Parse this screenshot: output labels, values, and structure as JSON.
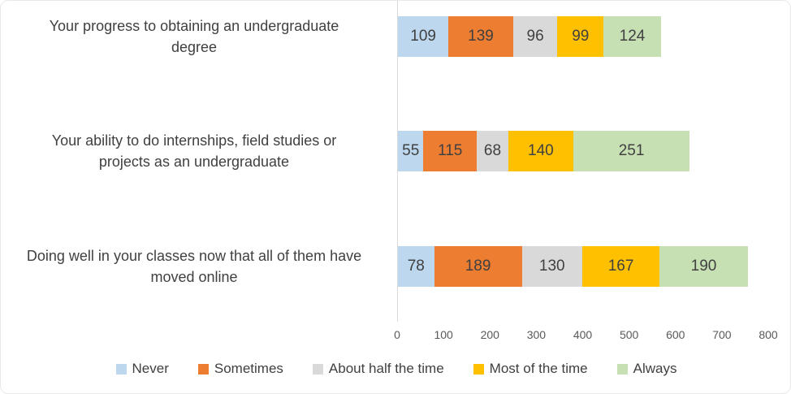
{
  "chart_data": {
    "type": "bar",
    "orientation": "horizontal",
    "stacked": true,
    "title": "",
    "categories": [
      "Your progress to obtaining an undergraduate degree",
      "Your ability to do internships, field studies or projects as an undergraduate",
      "Doing well in your classes now that all of them have moved online"
    ],
    "category_lines": [
      [
        "Your progress to obtaining an undergraduate",
        "degree"
      ],
      [
        "Your ability to do internships, field studies or",
        "projects as an undergraduate"
      ],
      [
        "Doing well in your classes now that all of them have",
        "moved online"
      ]
    ],
    "series": [
      {
        "name": "Never",
        "color": "#BDD7EE",
        "values": [
          109,
          55,
          78
        ]
      },
      {
        "name": "Sometimes",
        "color": "#ED7D31",
        "values": [
          139,
          115,
          189
        ]
      },
      {
        "name": "About half the time",
        "color": "#D9D9D9",
        "values": [
          96,
          68,
          130
        ]
      },
      {
        "name": "Most of the time",
        "color": "#FFC000",
        "values": [
          99,
          140,
          167
        ]
      },
      {
        "name": "Always",
        "color": "#C6E0B4",
        "values": [
          124,
          251,
          190
        ]
      }
    ],
    "xlim": [
      0,
      800
    ],
    "xticks": [
      0,
      100,
      200,
      300,
      400,
      500,
      600,
      700,
      800
    ],
    "grid": false,
    "legend_position": "bottom",
    "data_labels": true
  },
  "style": {
    "label_color": "#404040",
    "tick_color": "#595959",
    "axis_line_color": "#D9D9D9",
    "background": "#FFFFFF"
  }
}
